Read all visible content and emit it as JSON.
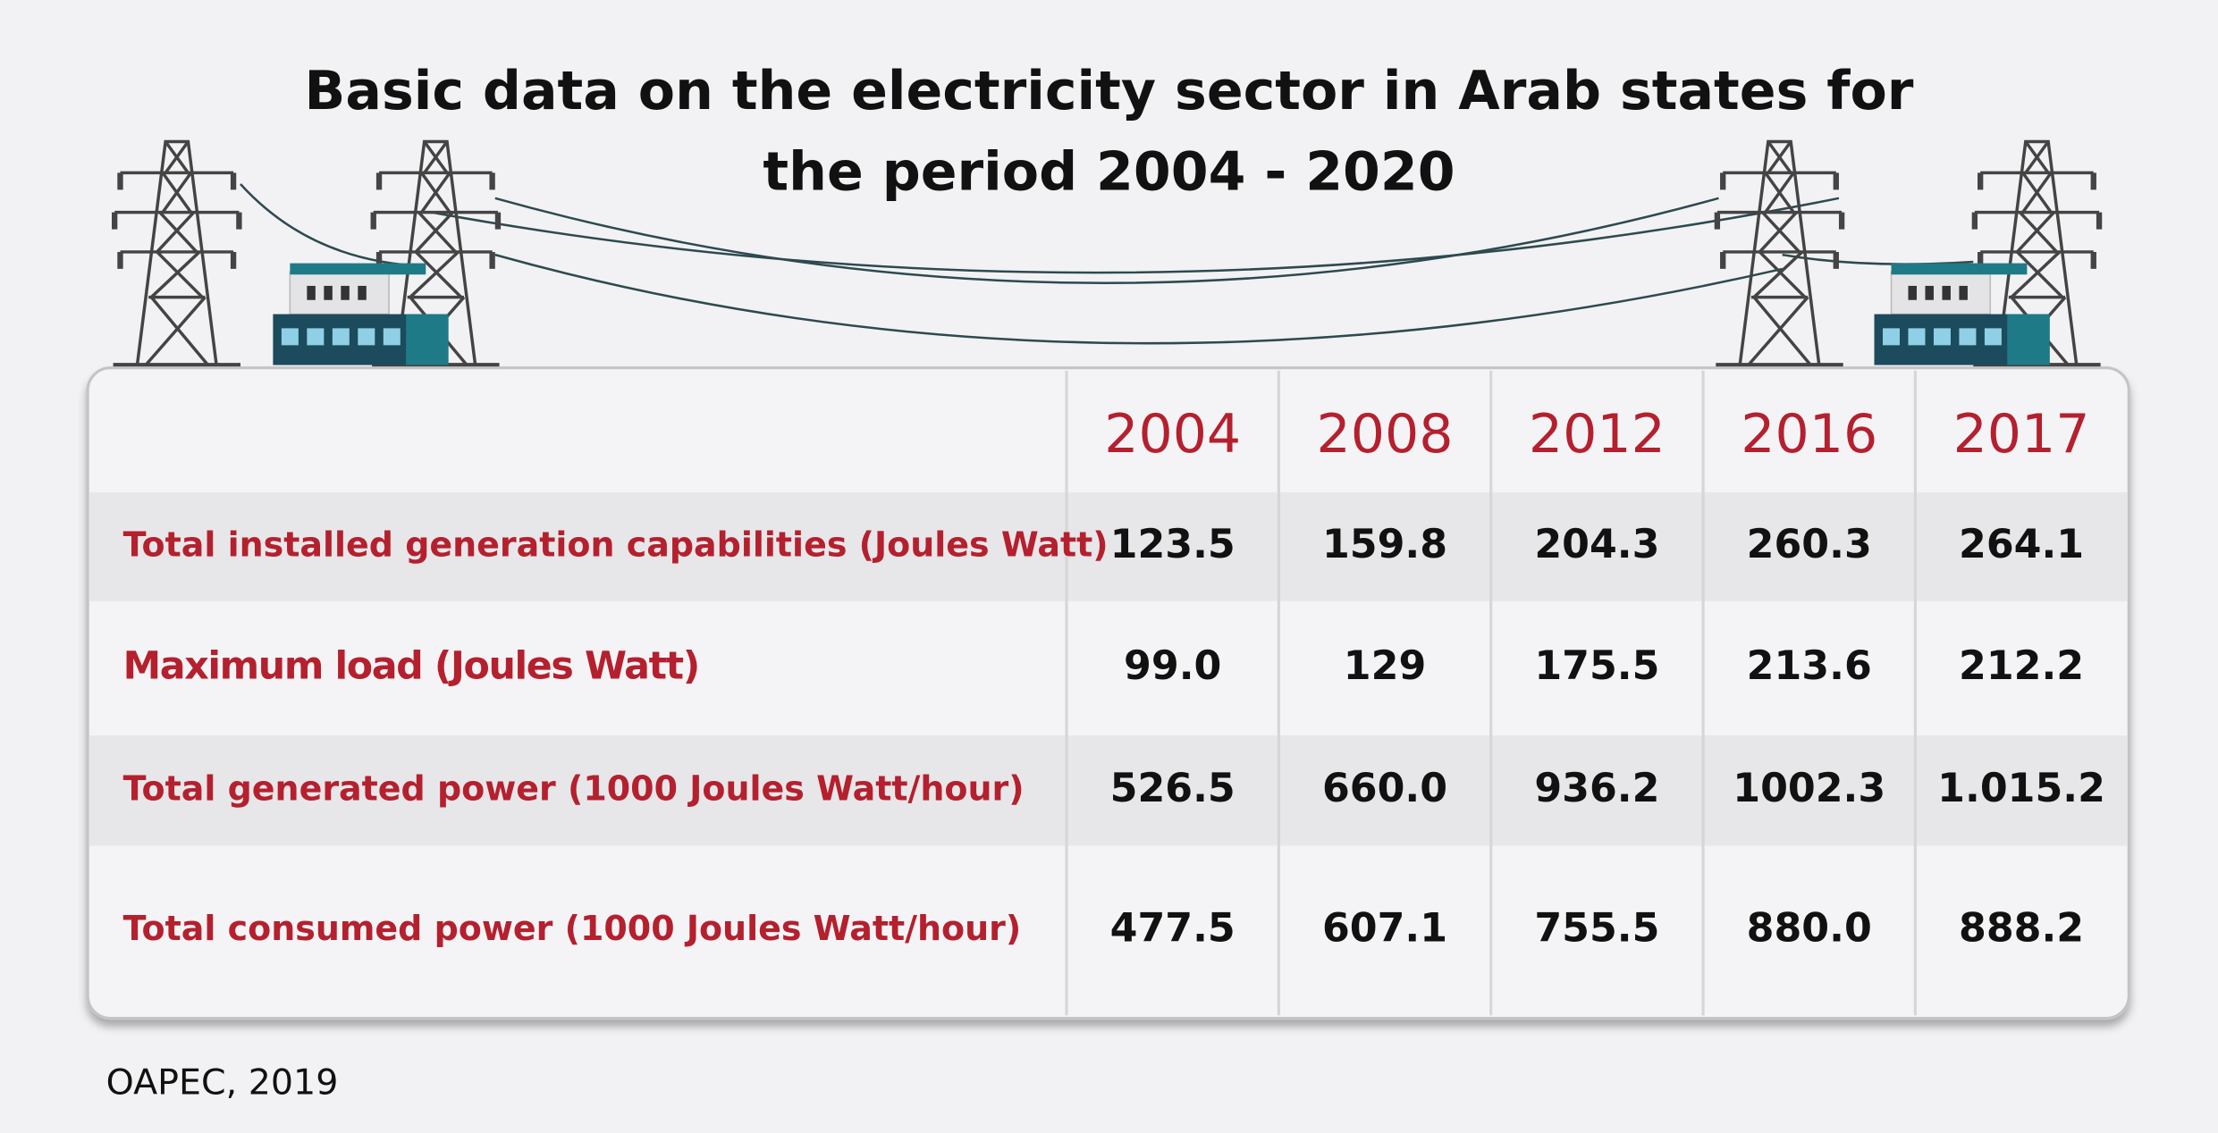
{
  "header": {
    "title": "Basic data on the electricity sector in Arab states for the period 2004 - 2020"
  },
  "table": {
    "columns": [
      "2004",
      "2008",
      "2012",
      "2016",
      "2017"
    ],
    "rows": [
      {
        "label": "Total installed generation capabilities (Joules Watt)",
        "values": [
          "123.5",
          "159.8",
          "204.3",
          "260.3",
          "264.1"
        ]
      },
      {
        "label": "Maximum load (Joules Watt)",
        "values": [
          "99.0",
          "129",
          "175.5",
          "213.6",
          "212.2"
        ]
      },
      {
        "label": "Total generated power (1000 Joules Watt/hour)",
        "values": [
          "526.5",
          "660.0",
          "936.2",
          "1002.3",
          "1.015.2"
        ]
      },
      {
        "label": "Total consumed power (1000 Joules Watt/hour)",
        "values": [
          "477.5",
          "607.1",
          "755.5",
          "880.0",
          "888.2"
        ]
      }
    ]
  },
  "footer": {
    "source": "OAPEC, 2019"
  }
}
